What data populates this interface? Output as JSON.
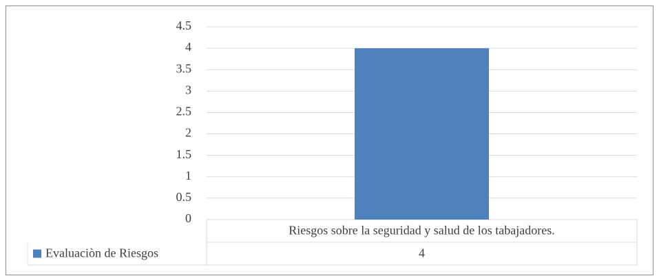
{
  "chart_data": {
    "type": "bar",
    "categories": [
      "Riesgos sobre la seguridad y salud de los tabajadores."
    ],
    "series": [
      {
        "name": "Evaluaciòn de Riesgos",
        "color": "#4f81bd",
        "values": [
          4
        ]
      }
    ],
    "ylim": [
      0,
      4.5
    ],
    "yticks": [
      0,
      0.5,
      1,
      1.5,
      2,
      2.5,
      3,
      3.5,
      4,
      4.5
    ],
    "grid": true,
    "data_table": true
  }
}
